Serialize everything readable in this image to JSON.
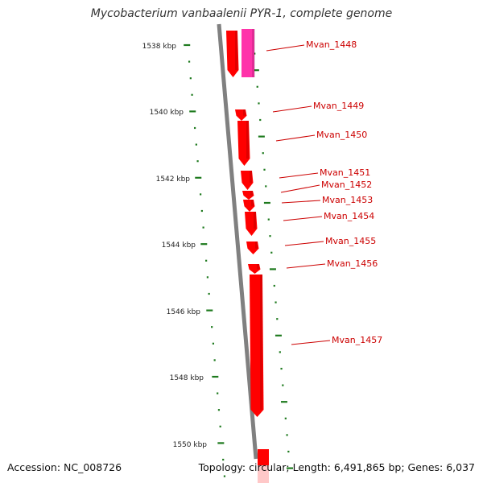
{
  "title": "Mycobacterium vanbaalenii PYR-1, complete genome",
  "footer": {
    "accession": "Accession: NC_008726",
    "topology": "Topology: circular; Length: 6,491,865 bp; Genes: 6,037"
  },
  "colors": {
    "gene_red": "#ff0000",
    "gene_pink": "#ff33aa",
    "label_red": "#cc0000",
    "tick_green": "#1e7a1e",
    "backbone_gray": "#808080"
  },
  "scale_labels": [
    "1538 kbp",
    "1540 kbp",
    "1542 kbp",
    "1544 kbp",
    "1546 kbp",
    "1548 kbp",
    "1550 kbp"
  ],
  "genes": [
    {
      "name": "Mvan_1448"
    },
    {
      "name": "Mvan_1449"
    },
    {
      "name": "Mvan_1450"
    },
    {
      "name": "Mvan_1451"
    },
    {
      "name": "Mvan_1452"
    },
    {
      "name": "Mvan_1453"
    },
    {
      "name": "Mvan_1454"
    },
    {
      "name": "Mvan_1455"
    },
    {
      "name": "Mvan_1456"
    },
    {
      "name": "Mvan_1457"
    }
  ]
}
